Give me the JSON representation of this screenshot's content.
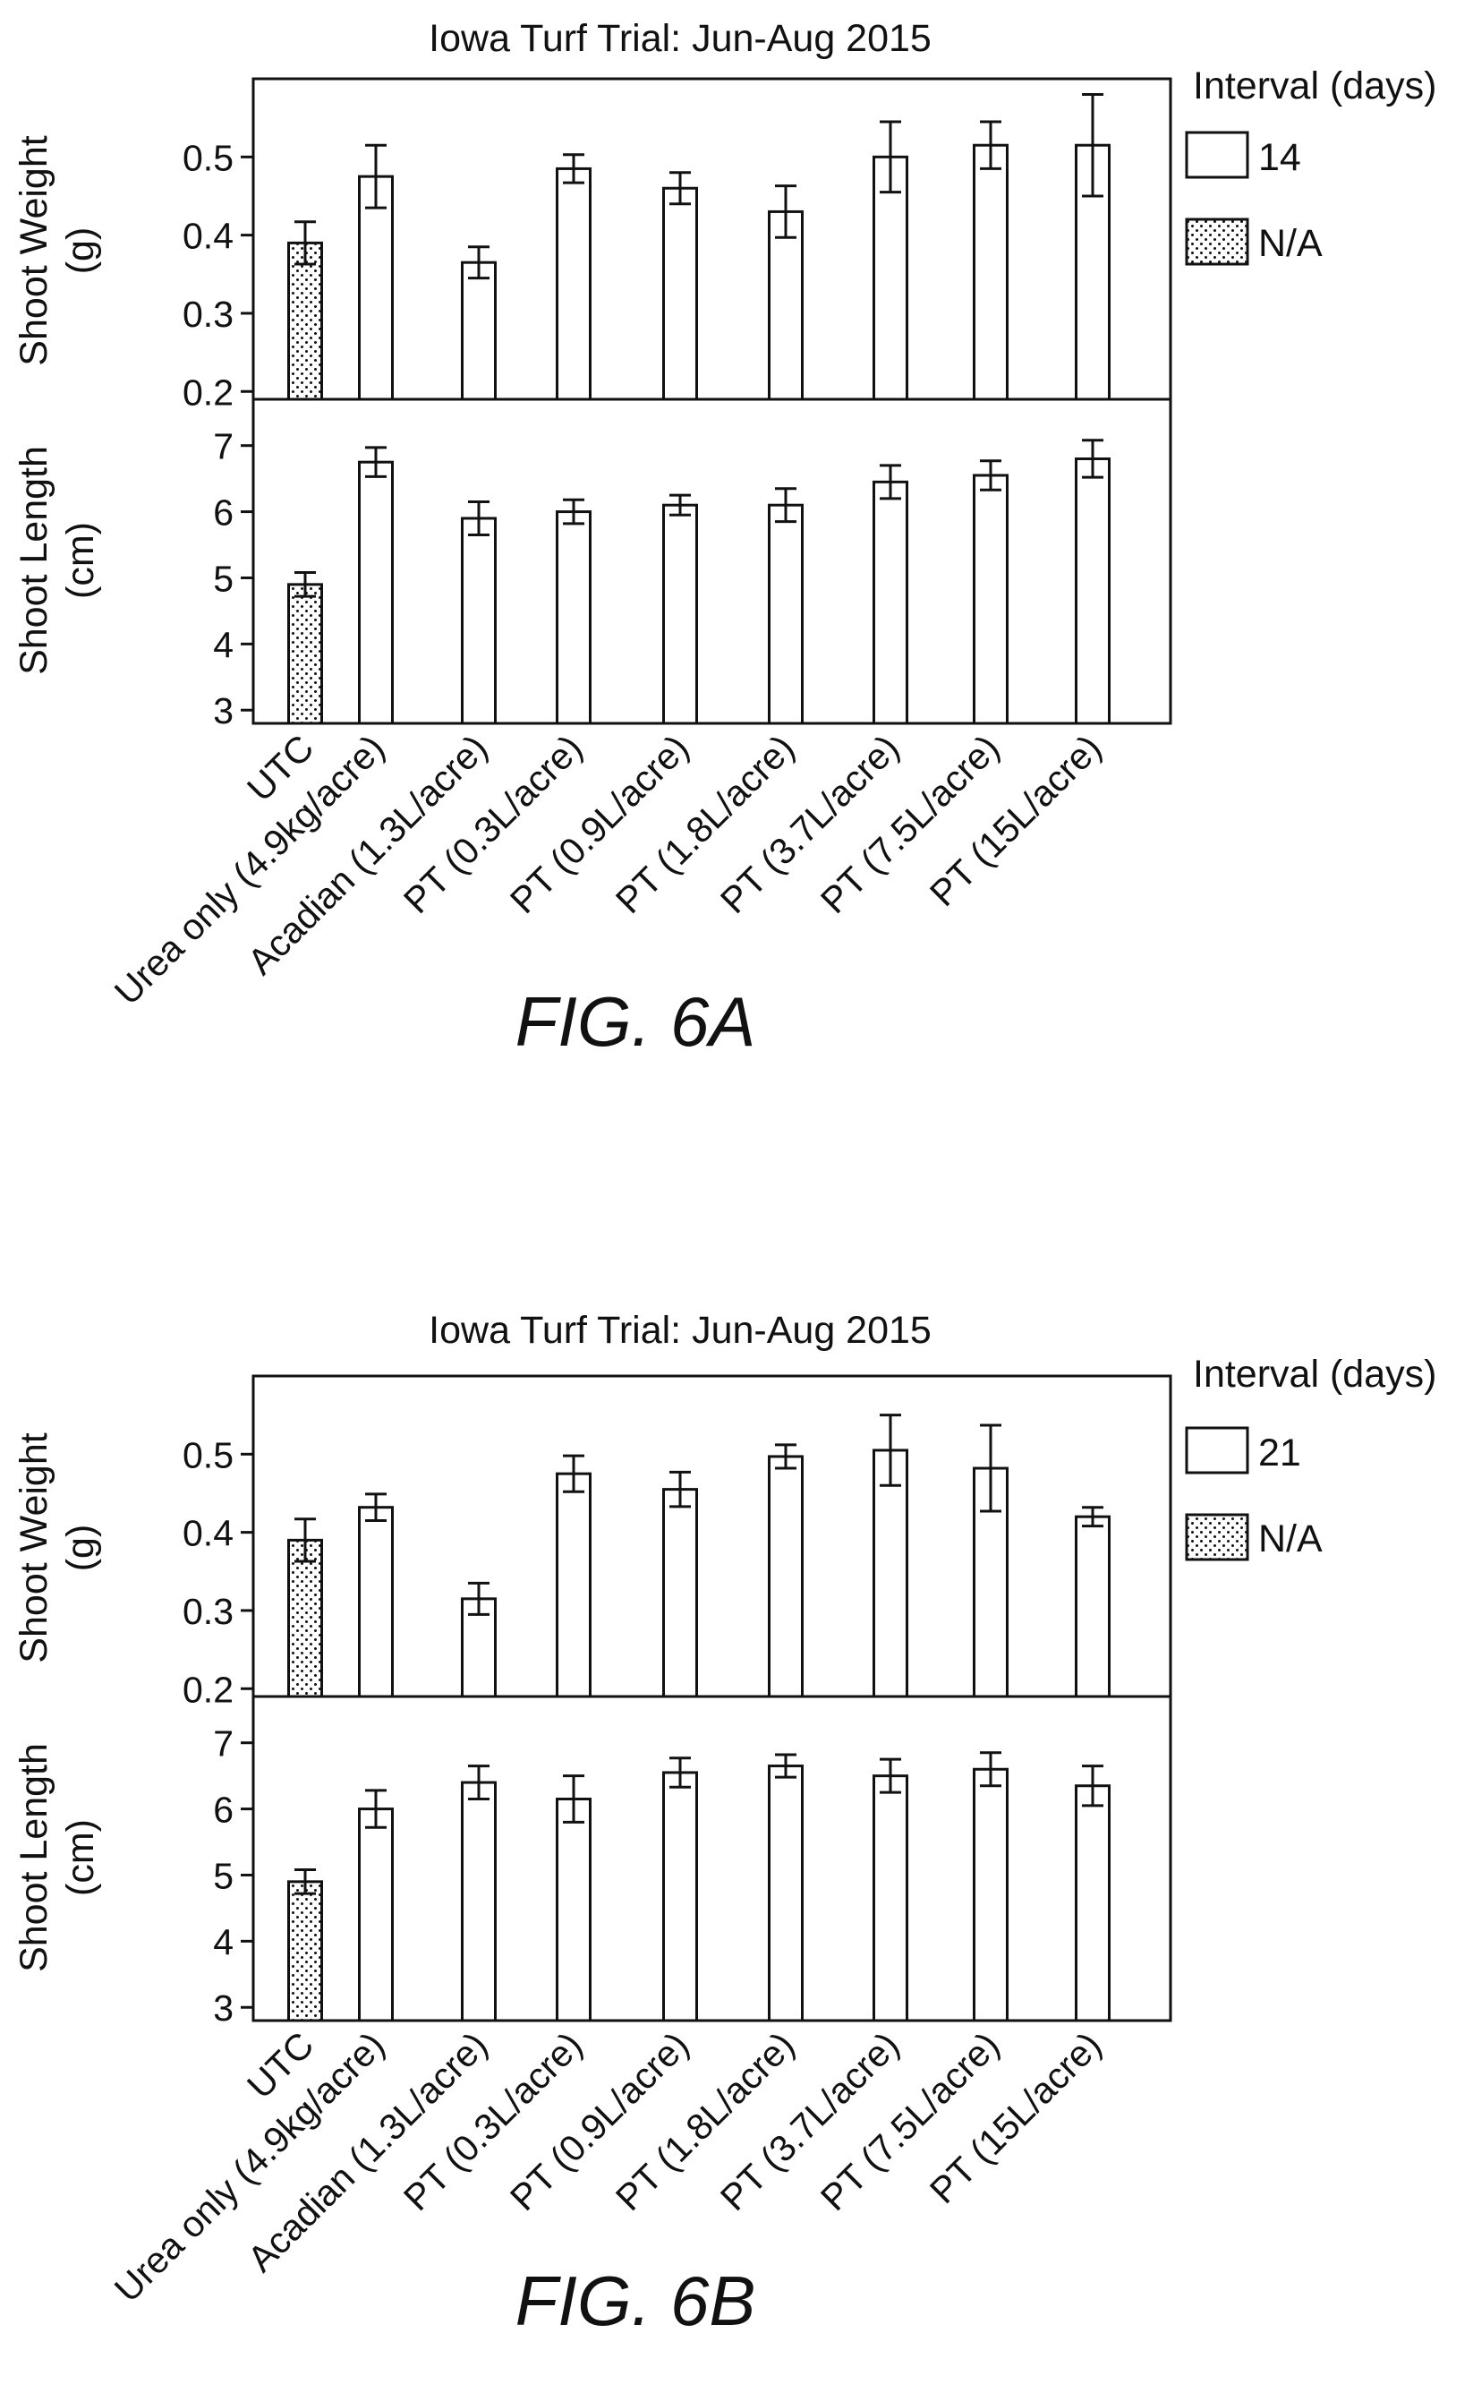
{
  "colors": {
    "ink": "#111111",
    "bar_fill": "#ffffff",
    "dot_fill": "#111111"
  },
  "figures": [
    {
      "title": "Iowa Turf Trial: Jun-Aug 2015",
      "caption": "FIG. 6A",
      "legend": {
        "title": "Interval (days)",
        "entries": [
          {
            "label": "14",
            "pattern": "open"
          },
          {
            "label": "N/A",
            "pattern": "dotted"
          }
        ]
      },
      "categories": [
        "UTC",
        "Urea only (4.9kg/acre)",
        "Acadian (1.3L/acre)",
        "PT (0.3L/acre)",
        "PT (0.9L/acre)",
        "PT (1.8L/acre)",
        "PT (3.7L/acre)",
        "PT (7.5L/acre)",
        "PT (15L/acre)"
      ],
      "patterns": [
        "dotted",
        "open",
        "open",
        "open",
        "open",
        "open",
        "open",
        "open",
        "open"
      ],
      "panels": [
        {
          "ylabel_line1": "Shoot Weight",
          "ylabel_line2": "(g)",
          "ticks": [
            "0.2",
            "0.3",
            "0.4",
            "0.5"
          ],
          "chart_data": {
            "type": "bar",
            "ylim": [
              0.19,
              0.6
            ],
            "tick_values": [
              0.2,
              0.3,
              0.4,
              0.5
            ],
            "values": [
              0.39,
              0.475,
              0.365,
              0.485,
              0.46,
              0.43,
              0.5,
              0.515,
              0.515
            ],
            "errors": [
              0.027,
              0.04,
              0.02,
              0.018,
              0.02,
              0.033,
              0.045,
              0.03,
              0.065
            ]
          }
        },
        {
          "ylabel_line1": "Shoot Length",
          "ylabel_line2": "(cm)",
          "ticks": [
            "3",
            "4",
            "5",
            "6",
            "7"
          ],
          "chart_data": {
            "type": "bar",
            "ylim": [
              2.8,
              7.7
            ],
            "tick_values": [
              3,
              4,
              5,
              6,
              7
            ],
            "values": [
              4.9,
              6.75,
              5.9,
              6.0,
              6.1,
              6.1,
              6.45,
              6.55,
              6.8
            ],
            "errors": [
              0.18,
              0.22,
              0.25,
              0.18,
              0.15,
              0.25,
              0.25,
              0.22,
              0.28
            ]
          }
        }
      ]
    },
    {
      "title": "Iowa Turf Trial: Jun-Aug 2015",
      "caption": "FIG. 6B",
      "legend": {
        "title": "Interval (days)",
        "entries": [
          {
            "label": "21",
            "pattern": "open"
          },
          {
            "label": "N/A",
            "pattern": "dotted"
          }
        ]
      },
      "categories": [
        "UTC",
        "Urea only (4.9kg/acre)",
        "Acadian (1.3L/acre)",
        "PT (0.3L/acre)",
        "PT (0.9L/acre)",
        "PT (1.8L/acre)",
        "PT (3.7L/acre)",
        "PT (7.5L/acre)",
        "PT (15L/acre)"
      ],
      "patterns": [
        "dotted",
        "open",
        "open",
        "open",
        "open",
        "open",
        "open",
        "open",
        "open"
      ],
      "panels": [
        {
          "ylabel_line1": "Shoot Weight",
          "ylabel_line2": "(g)",
          "ticks": [
            "0.2",
            "0.3",
            "0.4",
            "0.5"
          ],
          "chart_data": {
            "type": "bar",
            "ylim": [
              0.19,
              0.6
            ],
            "tick_values": [
              0.2,
              0.3,
              0.4,
              0.5
            ],
            "values": [
              0.39,
              0.432,
              0.315,
              0.475,
              0.455,
              0.497,
              0.505,
              0.482,
              0.42
            ],
            "errors": [
              0.027,
              0.017,
              0.02,
              0.023,
              0.022,
              0.015,
              0.045,
              0.055,
              0.012
            ]
          }
        },
        {
          "ylabel_line1": "Shoot Length",
          "ylabel_line2": "(cm)",
          "ticks": [
            "3",
            "4",
            "5",
            "6",
            "7"
          ],
          "chart_data": {
            "type": "bar",
            "ylim": [
              2.8,
              7.7
            ],
            "tick_values": [
              3,
              4,
              5,
              6,
              7
            ],
            "values": [
              4.9,
              6.0,
              6.4,
              6.15,
              6.55,
              6.65,
              6.5,
              6.6,
              6.35
            ],
            "errors": [
              0.18,
              0.28,
              0.25,
              0.35,
              0.22,
              0.17,
              0.25,
              0.25,
              0.3
            ]
          }
        }
      ]
    }
  ]
}
